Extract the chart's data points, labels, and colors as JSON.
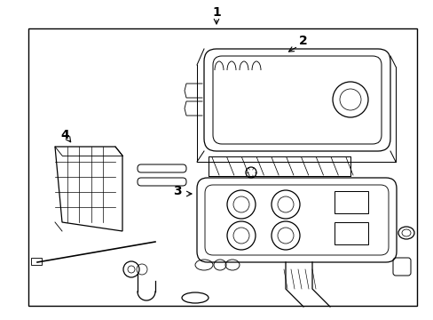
{
  "background_color": "#ffffff",
  "line_color": "#000000",
  "label_1": "1",
  "label_2": "2",
  "label_3": "3",
  "label_4": "4",
  "label_fontsize": 10,
  "fig_width": 4.89,
  "fig_height": 3.6,
  "dpi": 100
}
